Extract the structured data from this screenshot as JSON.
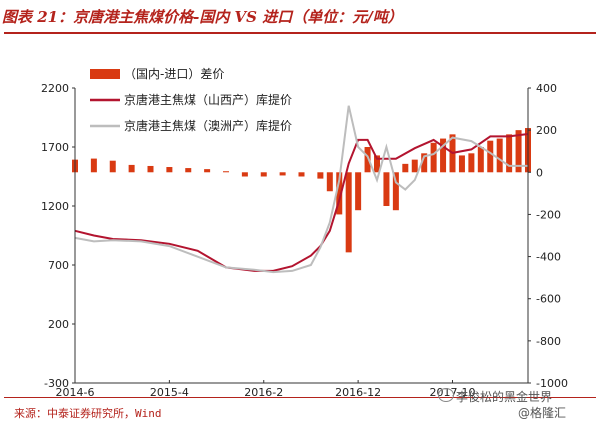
{
  "title": "图表 21：京唐港主焦煤价格-国内 VS 进口（单位：元/吨）",
  "source": "来源：中泰证券研究所，Wind",
  "watermark": {
    "line1": "李俊松的黑金世界",
    "line2": "@格隆汇"
  },
  "colors": {
    "bar": "#d93a12",
    "shanxi": "#b3142f",
    "aus": "#bdbdbd",
    "accent": "#b4231c"
  },
  "chart_data": {
    "type": "bar+line",
    "legend_position": "top-left",
    "x_ticks": [
      "2014-6",
      "2015-4",
      "2016-2",
      "2016-12",
      "2017-10"
    ],
    "x_range": [
      "2014-06",
      "2018-06"
    ],
    "left_axis": {
      "range": [
        -300,
        2200
      ],
      "ticks": [
        2200,
        1700,
        1200,
        700,
        200,
        -300
      ]
    },
    "right_axis": {
      "range": [
        -1000,
        400
      ],
      "ticks": [
        400,
        200,
        0,
        -200,
        -400,
        -600,
        -800,
        -1000
      ]
    },
    "series": [
      {
        "name": "（国内-进口）差价",
        "type": "bar",
        "axis": "right",
        "x": [
          "2014-06",
          "2014-08",
          "2014-10",
          "2014-12",
          "2015-02",
          "2015-04",
          "2015-06",
          "2015-08",
          "2015-10",
          "2015-12",
          "2016-02",
          "2016-04",
          "2016-06",
          "2016-08",
          "2016-09",
          "2016-10",
          "2016-11",
          "2016-12",
          "2017-01",
          "2017-02",
          "2017-03",
          "2017-04",
          "2017-05",
          "2017-06",
          "2017-07",
          "2017-08",
          "2017-09",
          "2017-10",
          "2017-11",
          "2017-12",
          "2018-01",
          "2018-02",
          "2018-03",
          "2018-04",
          "2018-05",
          "2018-06"
        ],
        "values": [
          60,
          65,
          55,
          35,
          30,
          25,
          20,
          15,
          5,
          -20,
          -20,
          -15,
          -20,
          -30,
          -90,
          -200,
          -380,
          -180,
          120,
          80,
          -160,
          -180,
          40,
          60,
          90,
          140,
          160,
          180,
          80,
          90,
          120,
          150,
          160,
          180,
          200,
          210
        ]
      },
      {
        "name": "京唐港主焦煤（山西产）库提价",
        "type": "line",
        "axis": "left",
        "x": [
          "2014-06",
          "2014-08",
          "2014-10",
          "2015-01",
          "2015-04",
          "2015-07",
          "2015-10",
          "2016-01",
          "2016-03",
          "2016-05",
          "2016-07",
          "2016-08",
          "2016-09",
          "2016-10",
          "2016-11",
          "2016-12",
          "2017-01",
          "2017-02",
          "2017-04",
          "2017-06",
          "2017-08",
          "2017-10",
          "2017-12",
          "2018-02",
          "2018-04",
          "2018-06"
        ],
        "values": [
          990,
          950,
          920,
          910,
          880,
          820,
          680,
          650,
          650,
          690,
          780,
          860,
          990,
          1250,
          1560,
          1760,
          1760,
          1600,
          1600,
          1690,
          1760,
          1650,
          1680,
          1790,
          1790,
          1810
        ]
      },
      {
        "name": "京唐港主焦煤（澳洲产）库提价",
        "type": "line",
        "axis": "left",
        "x": [
          "2014-06",
          "2014-08",
          "2014-10",
          "2015-01",
          "2015-04",
          "2015-07",
          "2015-10",
          "2016-01",
          "2016-03",
          "2016-05",
          "2016-07",
          "2016-08",
          "2016-09",
          "2016-10",
          "2016-11",
          "2016-12",
          "2017-01",
          "2017-02",
          "2017-03",
          "2017-04",
          "2017-05",
          "2017-06",
          "2017-07",
          "2017-08",
          "2017-10",
          "2017-12",
          "2018-02",
          "2018-04",
          "2018-06"
        ],
        "values": [
          930,
          900,
          910,
          900,
          860,
          770,
          680,
          660,
          640,
          650,
          700,
          850,
          1060,
          1420,
          2050,
          1700,
          1620,
          1420,
          1700,
          1400,
          1340,
          1420,
          1620,
          1640,
          1780,
          1750,
          1650,
          1540,
          1540
        ]
      }
    ]
  }
}
